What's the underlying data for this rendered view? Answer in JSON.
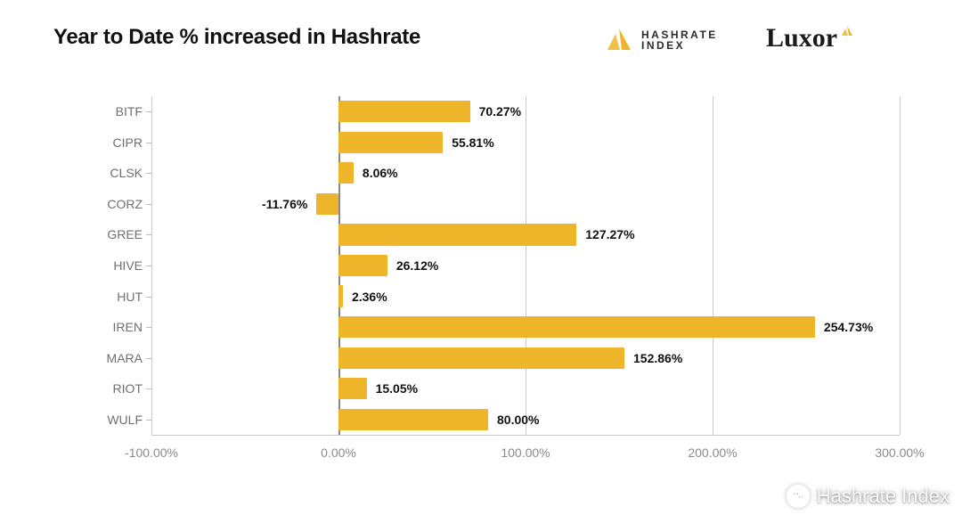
{
  "title": "Year to Date % increased in Hashrate",
  "brand": {
    "hashrate_index": {
      "line1": "HASHRATE",
      "line2": "INDEX",
      "icon_color": "#eeb52b"
    },
    "luxor": {
      "label": "Luxor",
      "icon_color": "#eeb52b"
    }
  },
  "chart": {
    "type": "bar-horizontal",
    "background_color": "#ffffff",
    "grid_color": "#c9c9c9",
    "axis_zero_color": "#888888",
    "bar_color": "#eeb52b",
    "bar_height_ratio": 0.7,
    "x": {
      "min": -100,
      "max": 300,
      "ticks": [
        -100,
        0,
        100,
        200,
        300
      ],
      "tick_labels": [
        "-100.00%",
        "0.00%",
        "100.00%",
        "200.00%",
        "300.00%"
      ],
      "tick_fontsize": 14,
      "tick_color": "#8a8a8a"
    },
    "y_label_color": "#6f6f6f",
    "y_label_fontsize": 14,
    "value_label_fontsize": 14,
    "value_label_weight": 700,
    "series": [
      {
        "label": "BITF",
        "value": 70.27,
        "value_label": "70.27%"
      },
      {
        "label": "CIPR",
        "value": 55.81,
        "value_label": "55.81%"
      },
      {
        "label": "CLSK",
        "value": 8.06,
        "value_label": "8.06%"
      },
      {
        "label": "CORZ",
        "value": -11.76,
        "value_label": "-11.76%"
      },
      {
        "label": "GREE",
        "value": 127.27,
        "value_label": "127.27%"
      },
      {
        "label": "HIVE",
        "value": 26.12,
        "value_label": "26.12%"
      },
      {
        "label": "HUT",
        "value": 2.36,
        "value_label": "2.36%"
      },
      {
        "label": "IREN",
        "value": 254.73,
        "value_label": "254.73%"
      },
      {
        "label": "MARA",
        "value": 152.86,
        "value_label": "152.86%"
      },
      {
        "label": "RIOT",
        "value": 15.05,
        "value_label": "15.05%"
      },
      {
        "label": "WULF",
        "value": 80.0,
        "value_label": "80.00%"
      }
    ]
  },
  "watermark": {
    "text": "Hashrate Index"
  }
}
